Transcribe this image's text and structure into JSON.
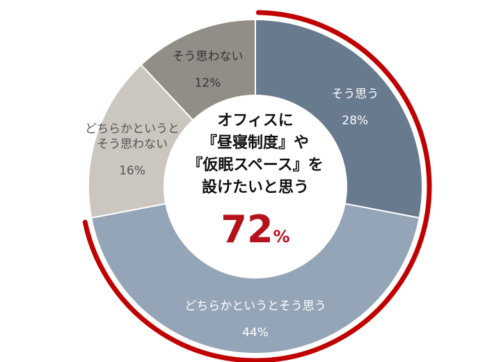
{
  "chart_data": {
    "type": "pie",
    "categories": [
      "そう思う",
      "どちらかというとそう思う",
      "どちらかというと\nそう思わない",
      "そう思わない"
    ],
    "values": [
      28,
      44,
      16,
      12
    ],
    "value_labels": [
      "28%",
      "44%",
      "16%",
      "12%"
    ],
    "colors": [
      "#677a8e",
      "#94a5b8",
      "#cbc6bf",
      "#938d87"
    ],
    "label_colors": [
      "#ffffff",
      "#ffffff",
      "#555555",
      "#333333"
    ],
    "highlight": {
      "color": "#c00000"
    },
    "center": {
      "lines": [
        "オフィスに",
        "『昼寝制度』や",
        "『仮眠スペース』を",
        "設けたいと思う"
      ],
      "number": "72",
      "unit": "%"
    }
  }
}
